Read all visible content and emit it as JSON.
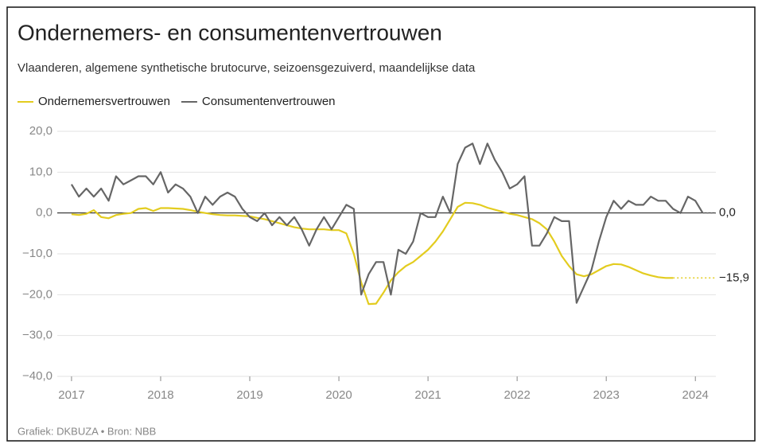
{
  "chart_data": {
    "type": "line",
    "title": "Ondernemers- en consumentenvertrouwen",
    "subtitle": "Vlaanderen, algemene synthetische brutocurve, seizoensgezuiverd, maandelijkse data",
    "source": "Grafiek: DKBUZA • Bron: NBB",
    "x": [
      2017,
      2017.083,
      2017.167,
      2017.25,
      2017.333,
      2017.417,
      2017.5,
      2017.583,
      2017.667,
      2017.75,
      2017.833,
      2017.917,
      2018,
      2018.083,
      2018.167,
      2018.25,
      2018.333,
      2018.417,
      2018.5,
      2018.583,
      2018.667,
      2018.75,
      2018.833,
      2018.917,
      2019,
      2019.083,
      2019.167,
      2019.25,
      2019.333,
      2019.417,
      2019.5,
      2019.583,
      2019.667,
      2019.75,
      2019.833,
      2019.917,
      2020,
      2020.083,
      2020.167,
      2020.25,
      2020.333,
      2020.417,
      2020.5,
      2020.583,
      2020.667,
      2020.75,
      2020.833,
      2020.917,
      2021,
      2021.083,
      2021.167,
      2021.25,
      2021.333,
      2021.417,
      2021.5,
      2021.583,
      2021.667,
      2021.75,
      2021.833,
      2021.917,
      2022,
      2022.083,
      2022.167,
      2022.25,
      2022.333,
      2022.417,
      2022.5,
      2022.583,
      2022.667,
      2022.75,
      2022.833,
      2022.917,
      2023,
      2023.083,
      2023.167,
      2023.25,
      2023.333,
      2023.417,
      2023.5,
      2023.583,
      2023.667,
      2023.75,
      2023.833,
      2023.917,
      2024,
      2024.083
    ],
    "series": [
      {
        "name": "Ondernemersvertrouwen",
        "color": "#e3cc1f",
        "end_label": "−15,9",
        "values": [
          -0.3,
          -0.5,
          -0.2,
          0.7,
          -1,
          -1.3,
          -0.5,
          -0.2,
          0,
          1,
          1.2,
          0.5,
          1.2,
          1.2,
          1.1,
          1,
          0.7,
          0.3,
          0,
          -0.3,
          -0.5,
          -0.6,
          -0.6,
          -0.7,
          -0.8,
          -1.2,
          -1.5,
          -2,
          -2.5,
          -3,
          -3.5,
          -3.8,
          -4,
          -4,
          -4,
          -4.2,
          -4.2,
          -5,
          -10,
          -17,
          -22.3,
          -22.2,
          -19.5,
          -16.5,
          -14.5,
          -13,
          -12,
          -10.5,
          -9,
          -7,
          -4.5,
          -1.5,
          1.5,
          2.5,
          2.4,
          2,
          1.3,
          0.8,
          0.3,
          -0.2,
          -0.5,
          -1,
          -1.5,
          -2.5,
          -4,
          -7,
          -10.5,
          -13,
          -15,
          -15.5,
          -15,
          -14,
          -13,
          -12.5,
          -12.6,
          -13.2,
          -14,
          -14.8,
          -15.3,
          -15.7,
          -15.9,
          -15.9,
          null,
          null,
          null,
          null
        ]
      },
      {
        "name": "Consumentenvertrouwen",
        "color": "#666666",
        "end_label": "0,0",
        "values": [
          7,
          4,
          6,
          4,
          6,
          3,
          9,
          7,
          8,
          9,
          9,
          7,
          10,
          5,
          7,
          6,
          4,
          0,
          4,
          2,
          4,
          5,
          4,
          1,
          -1,
          -2,
          0,
          -3,
          -1,
          -3,
          -1,
          -4,
          -8,
          -4,
          -1,
          -4,
          -1,
          2,
          1,
          -20,
          -15,
          -12,
          -12,
          -20,
          -9,
          -10,
          -7,
          0,
          -1,
          -1,
          4,
          0,
          12,
          16,
          17,
          12,
          17,
          13,
          10,
          6,
          7,
          9,
          -8,
          -8,
          -5,
          -1,
          -2,
          -2,
          -22,
          -18,
          -14,
          -7,
          -1,
          3,
          1,
          3,
          2,
          2,
          4,
          3,
          3,
          1,
          0,
          4,
          3,
          0
        ]
      }
    ],
    "xlim": [
      2016.84,
      2024.23
    ],
    "xticks": [
      2017,
      2018,
      2019,
      2020,
      2021,
      2022,
      2023,
      2024
    ],
    "ylim": [
      -40,
      20
    ],
    "yticks": [
      {
        "value": -40,
        "label": "−40,0"
      },
      {
        "value": -30,
        "label": "−30,0"
      },
      {
        "value": -20,
        "label": "−20,0"
      },
      {
        "value": -10,
        "label": "−10,0"
      },
      {
        "value": 0,
        "label": "0,0"
      },
      {
        "value": 10,
        "label": "10,0"
      },
      {
        "value": 20,
        "label": "20,0"
      }
    ],
    "grid": true
  }
}
